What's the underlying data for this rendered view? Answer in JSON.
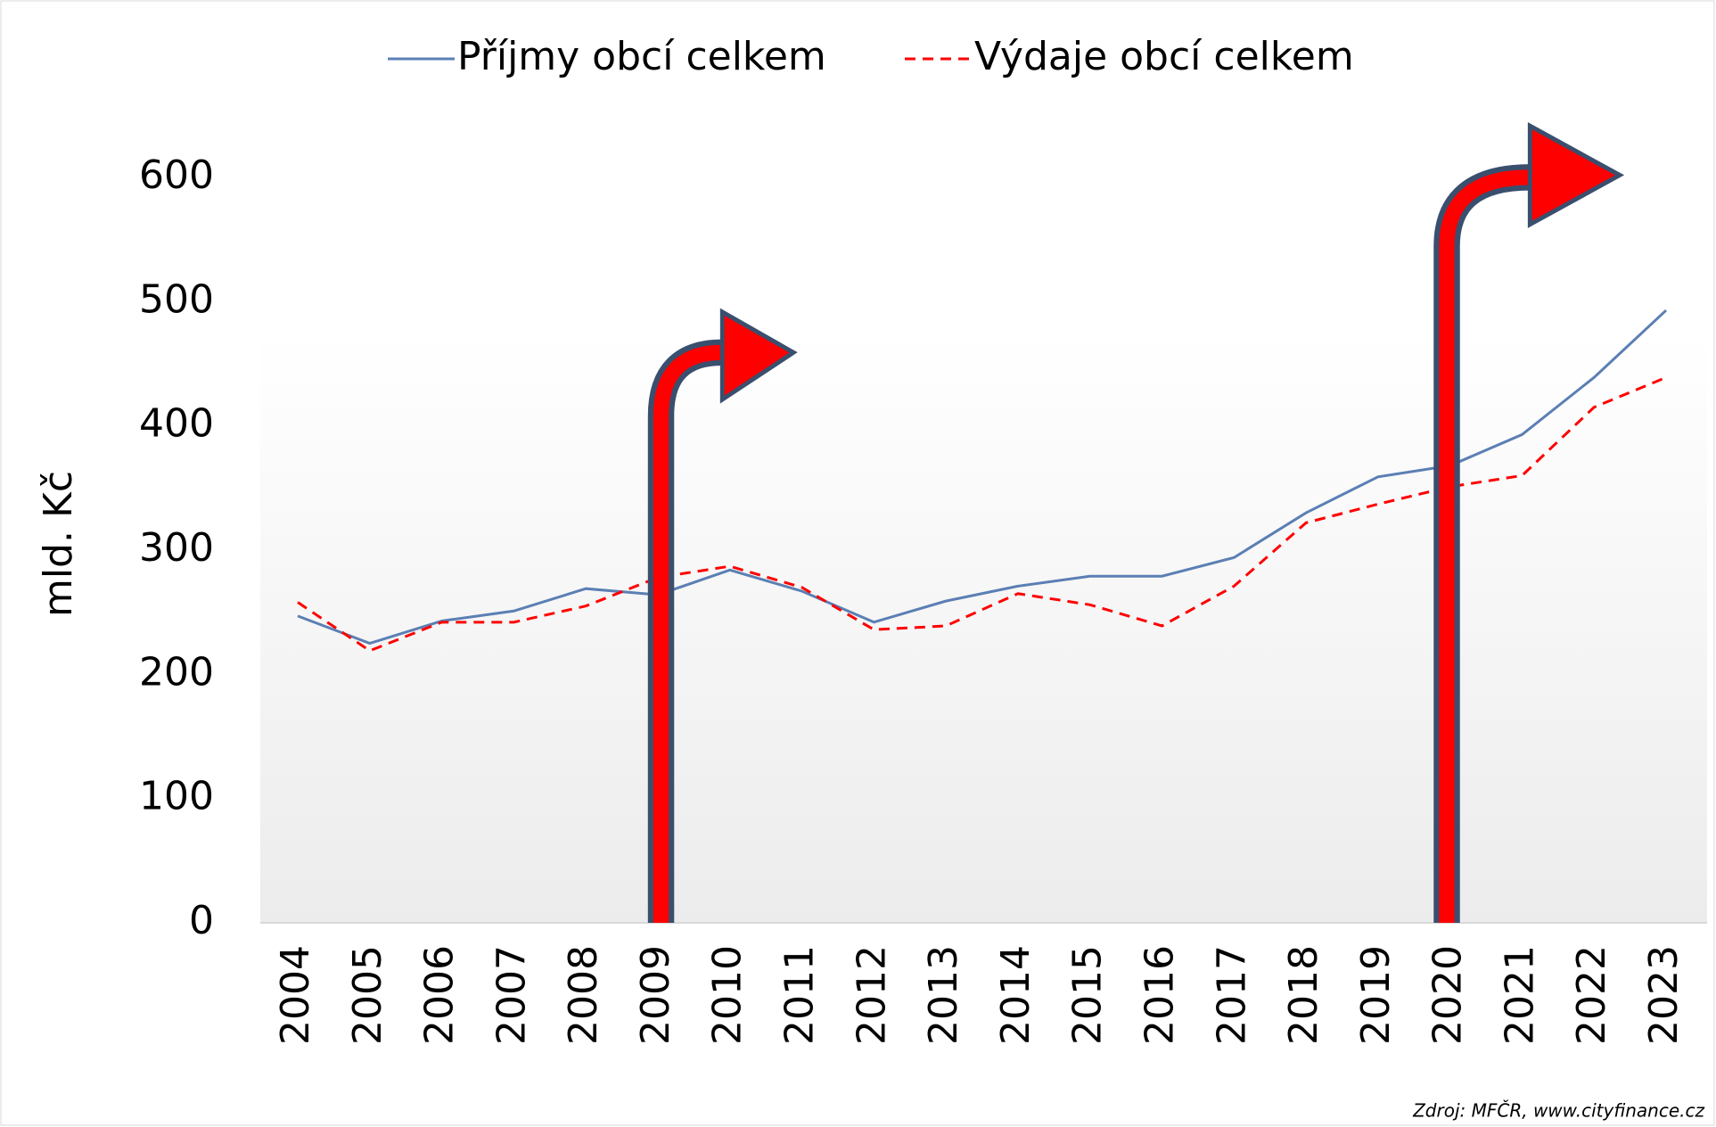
{
  "chart_data": {
    "type": "line",
    "ylabel": "mld. Kč",
    "source": "Zdroj: MFČR, www.cityfinance.cz",
    "legend": "top",
    "categories": [
      "2004",
      "2005",
      "2006",
      "2007",
      "2008",
      "2009",
      "2010",
      "2011",
      "2012",
      "2013",
      "2014",
      "2015",
      "2016",
      "2017",
      "2018",
      "2019",
      "2020",
      "2021",
      "2022",
      "2023"
    ],
    "series": [
      {
        "name": "Příjmy obcí celkem",
        "color": "#5b7fb4",
        "dash": false,
        "values": [
          247,
          225,
          243,
          251,
          269,
          264,
          284,
          267,
          242,
          259,
          271,
          279,
          279,
          294,
          330,
          359,
          368,
          393,
          439,
          493
        ]
      },
      {
        "name": "Výdaje obcí celkem",
        "color": "#ff0000",
        "dash": true,
        "values": [
          258,
          219,
          242,
          242,
          255,
          278,
          287,
          270,
          236,
          239,
          265,
          256,
          239,
          271,
          322,
          337,
          351,
          360,
          415,
          439
        ]
      }
    ],
    "ylim": [
      0,
      600
    ],
    "yticks": [
      0,
      100,
      200,
      300,
      400,
      500,
      600
    ]
  }
}
